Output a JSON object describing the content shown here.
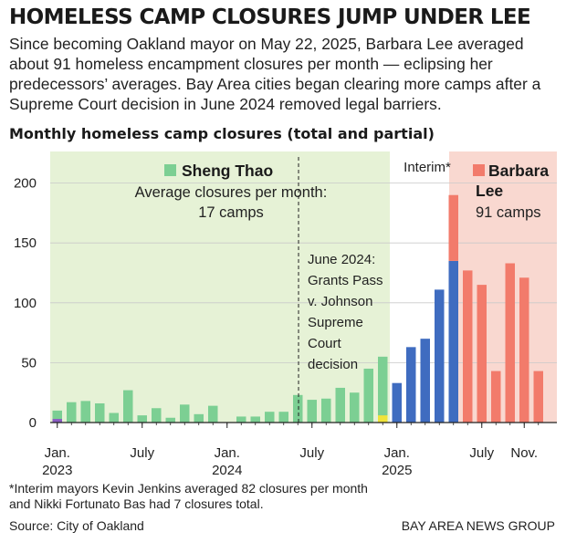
{
  "headline": "HOMELESS CAMP CLOSURES JUMP UNDER LEE",
  "dek": "Since becoming Oakland mayor on May 22, 2025, Barbara Lee averaged about 91 homeless encampment closures per month — eclipsing her predecessors’ averages. Bay Area cities began clearing more camps after a Supreme Court decision in June 2024 removed legal barriers.",
  "footnote_line1": "*Interim mayors Kevin Jenkins averaged 82 closures per month",
  "footnote_line2": "and Nikki Fortunato Bas had 7 closures total.",
  "source": "Source: City of Oakland",
  "credit": "BAY AREA NEWS GROUP",
  "colors": {
    "thao": "#7ccf93",
    "thao_bg": "#e6f2d6",
    "interim": "#3f6cc0",
    "interim_partial": "#f0e33a",
    "lee": "#f27b6b",
    "lee_bg": "#f9d8d0",
    "purple": "#8a5cc2"
  },
  "chart_data": {
    "type": "bar",
    "title": "Monthly homeless camp closures (total and partial)",
    "ylim": [
      0,
      220
    ],
    "yticks": [
      0,
      50,
      100,
      150,
      200
    ],
    "xtick_labels": [
      {
        "index": 0,
        "line1": "Jan.",
        "line2": "2023"
      },
      {
        "index": 6,
        "line1": "July",
        "line2": ""
      },
      {
        "index": 12,
        "line1": "Jan.",
        "line2": "2024"
      },
      {
        "index": 18,
        "line1": "July",
        "line2": ""
      },
      {
        "index": 24,
        "line1": "Jan.",
        "line2": "2025"
      },
      {
        "index": 30,
        "line1": "July",
        "line2": ""
      },
      {
        "index": 33,
        "line1": "Nov.",
        "line2": ""
      }
    ],
    "months": [
      "Jan 2023",
      "Feb 2023",
      "Mar 2023",
      "Apr 2023",
      "May 2023",
      "Jun 2023",
      "Jul 2023",
      "Aug 2023",
      "Sep 2023",
      "Oct 2023",
      "Nov 2023",
      "Dec 2023",
      "Jan 2024",
      "Feb 2024",
      "Mar 2024",
      "Apr 2024",
      "May 2024",
      "Jun 2024",
      "Jul 2024",
      "Aug 2024",
      "Sep 2024",
      "Oct 2024",
      "Nov 2024",
      "Dec 2024",
      "Jan 2025",
      "Feb 2025",
      "Mar 2025",
      "Apr 2025",
      "May 2025",
      "Jun 2025",
      "Jul 2025",
      "Aug 2025",
      "Sep 2025",
      "Oct 2025",
      "Nov 2025"
    ],
    "series": [
      {
        "key": "thao",
        "values": [
          10,
          17,
          18,
          16,
          8,
          27,
          6,
          12,
          4,
          15,
          7,
          14,
          0,
          5,
          5,
          9,
          9,
          23,
          19,
          20,
          29,
          25,
          45,
          55,
          0,
          0,
          0,
          0,
          0,
          0,
          0,
          0,
          0,
          0,
          0
        ]
      },
      {
        "key": "interim",
        "values": [
          0,
          0,
          0,
          0,
          0,
          0,
          0,
          0,
          0,
          0,
          0,
          0,
          0,
          0,
          0,
          0,
          0,
          0,
          0,
          0,
          0,
          0,
          0,
          0,
          33,
          63,
          70,
          111,
          135,
          0,
          0,
          0,
          0,
          0,
          0
        ]
      },
      {
        "key": "lee",
        "values": [
          0,
          0,
          0,
          0,
          0,
          0,
          0,
          0,
          0,
          0,
          0,
          0,
          0,
          0,
          0,
          0,
          0,
          0,
          0,
          0,
          0,
          0,
          0,
          0,
          0,
          0,
          0,
          0,
          55,
          127,
          115,
          43,
          133,
          121,
          43
        ]
      },
      {
        "key": "interim_partial",
        "values": [
          0,
          0,
          0,
          0,
          0,
          0,
          0,
          0,
          0,
          0,
          0,
          0,
          0,
          0,
          0,
          0,
          0,
          0,
          0,
          0,
          0,
          0,
          0,
          6,
          0,
          0,
          0,
          0,
          0,
          0,
          0,
          0,
          0,
          0,
          0
        ]
      },
      {
        "key": "purple",
        "values": [
          3,
          0,
          0,
          0,
          0,
          0,
          0,
          0,
          0,
          0,
          0,
          0,
          0,
          0,
          0,
          0,
          0,
          0,
          0,
          0,
          0,
          0,
          0,
          0,
          0,
          0,
          0,
          0,
          0,
          0,
          0,
          0,
          0,
          0,
          0
        ]
      }
    ],
    "periods": {
      "thao": {
        "name_label": "Sheng Thao",
        "avg_line1": "Average closures per month:",
        "avg_line2": "17 camps"
      },
      "interim": {
        "label": "Interim*"
      },
      "lee": {
        "name_line1": "Barbara",
        "name_line2": "Lee",
        "avg": "91 camps"
      }
    },
    "annotation": [
      "June 2024:",
      "Grants Pass",
      "v. Johnson",
      "Supreme",
      "Court",
      "decision"
    ]
  }
}
